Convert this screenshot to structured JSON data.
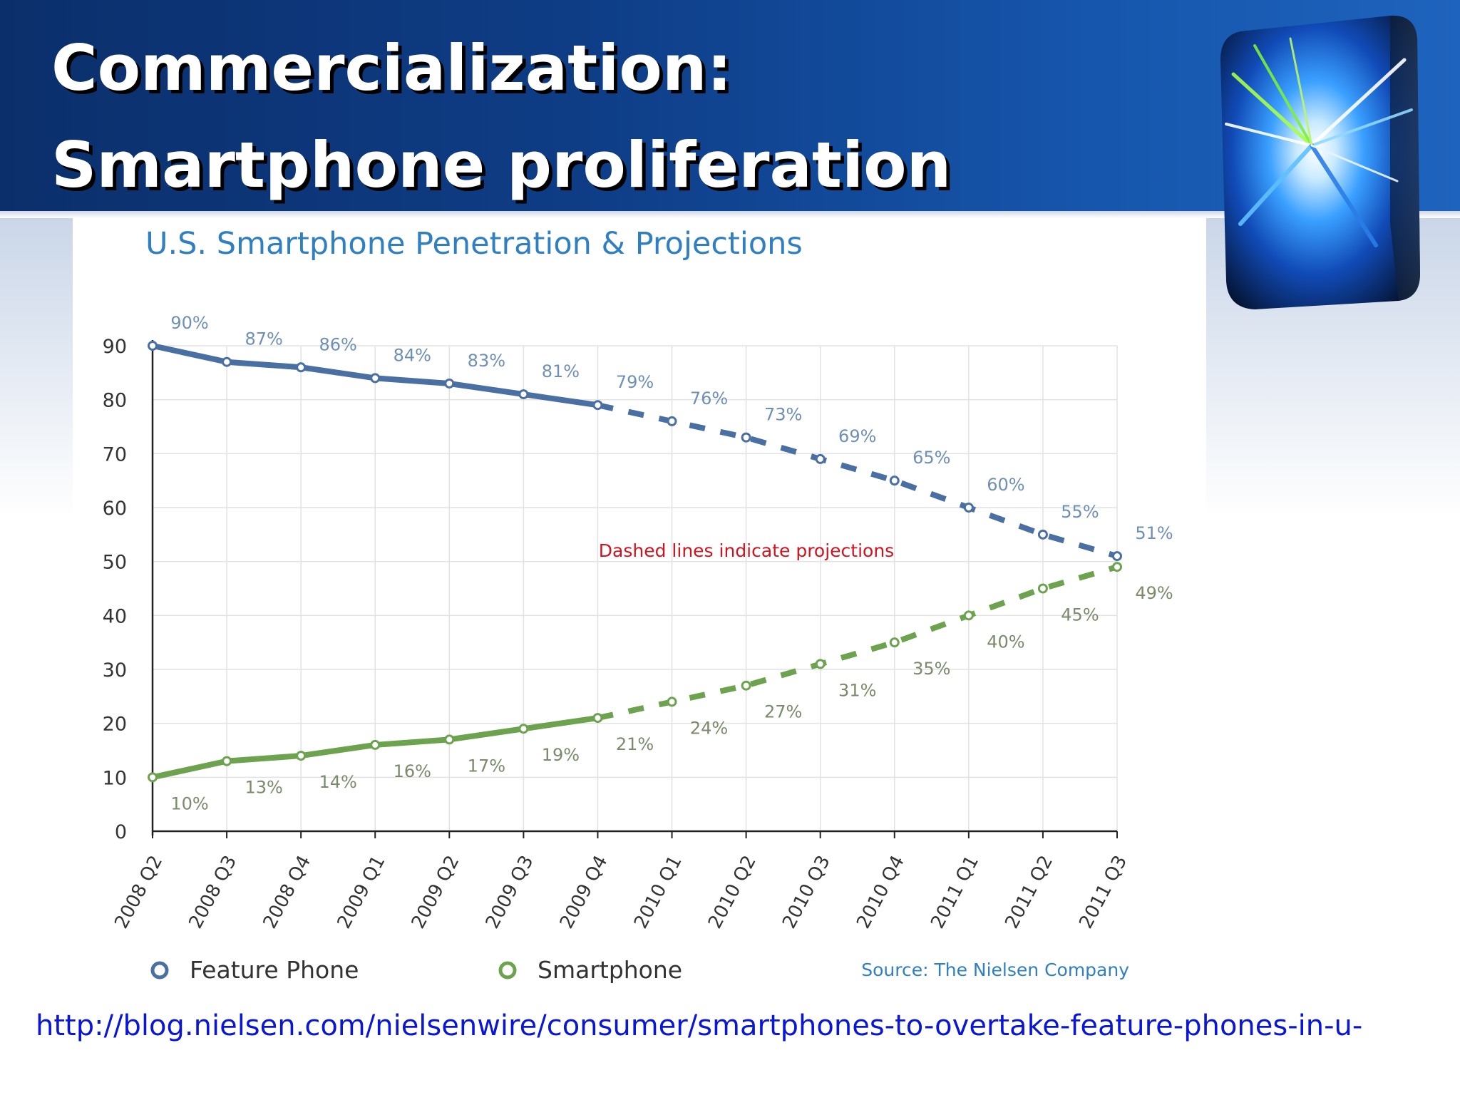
{
  "slide": {
    "title_line1": "Commercialization:",
    "title_line2": "Smartphone proliferation",
    "link_url": "http://blog.nielsen.com/nielsenwire/consumer/smartphones-to-overtake-feature-phones-in-u-"
  },
  "colors": {
    "feature_phone": "#4a6fa3",
    "smartphone": "#6da24f",
    "title": "#2f7fc1",
    "annotation": "#d0141f",
    "source": "#2f7fc1",
    "link": "#0a16d6"
  },
  "chart_data": {
    "type": "line",
    "title": "U.S. Smartphone Penetration & Projections",
    "categories": [
      "2008 Q2",
      "2008 Q3",
      "2008 Q4",
      "2009 Q1",
      "2009 Q2",
      "2009 Q3",
      "2009 Q4",
      "2010 Q1",
      "2010 Q2",
      "2010 Q3",
      "2010 Q4",
      "2011 Q1",
      "2011 Q2",
      "2011 Q3"
    ],
    "series": [
      {
        "name": "Feature Phone",
        "values": [
          90,
          87,
          86,
          84,
          83,
          81,
          79,
          76,
          73,
          69,
          65,
          60,
          55,
          51
        ],
        "labels": [
          "90%",
          "87%",
          "86%",
          "84%",
          "83%",
          "81%",
          "79%",
          "76%",
          "73%",
          "69%",
          "65%",
          "60%",
          "55%",
          "51%"
        ]
      },
      {
        "name": "Smartphone",
        "values": [
          10,
          13,
          14,
          16,
          17,
          19,
          21,
          24,
          27,
          31,
          35,
          40,
          45,
          49
        ],
        "labels": [
          "10%",
          "13%",
          "14%",
          "16%",
          "17%",
          "19%",
          "21%",
          "24%",
          "27%",
          "31%",
          "35%",
          "40%",
          "45%",
          "49%"
        ]
      }
    ],
    "projection_start_index": 6,
    "ylim": [
      0,
      90
    ],
    "yticks": [
      "0",
      "10",
      "20",
      "30",
      "40",
      "50",
      "60",
      "70",
      "80",
      "90"
    ],
    "annotation": "Dashed lines indicate projections",
    "source": "Source: The Nielsen Company",
    "grid": true,
    "legend_position": "bottom"
  }
}
